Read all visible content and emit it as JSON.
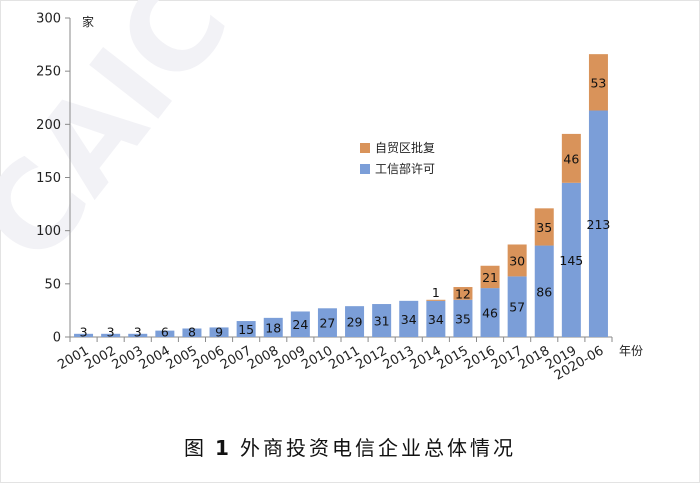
{
  "chart_data": {
    "type": "bar",
    "stacked": true,
    "caption_prefix": "图",
    "caption_number": "1",
    "caption_title": "外商投资电信企业总体情况",
    "ylabel_unit": "家",
    "xlabel_unit": "年份",
    "categories": [
      "2001",
      "2002",
      "2003",
      "2004",
      "2005",
      "2006",
      "2007",
      "2008",
      "2009",
      "2010",
      "2011",
      "2012",
      "2013",
      "2014",
      "2015",
      "2016",
      "2017",
      "2018",
      "2019",
      "2020-06"
    ],
    "series": [
      {
        "name": "工信部许可",
        "color": "#7B9ED8",
        "values": [
          3,
          3,
          3,
          6,
          8,
          9,
          15,
          18,
          24,
          27,
          29,
          31,
          34,
          34,
          35,
          46,
          57,
          86,
          145,
          213
        ]
      },
      {
        "name": "自贸区批复",
        "color": "#D9935A",
        "values": [
          0,
          0,
          0,
          0,
          0,
          0,
          0,
          0,
          0,
          0,
          0,
          0,
          0,
          1,
          12,
          21,
          30,
          35,
          46,
          53
        ]
      }
    ],
    "ylim": [
      0,
      300
    ],
    "yticks": [
      0,
      50,
      100,
      150,
      200,
      250,
      300
    ],
    "legend_position": "center-right",
    "grid": false,
    "watermark_text": "CAICT"
  }
}
